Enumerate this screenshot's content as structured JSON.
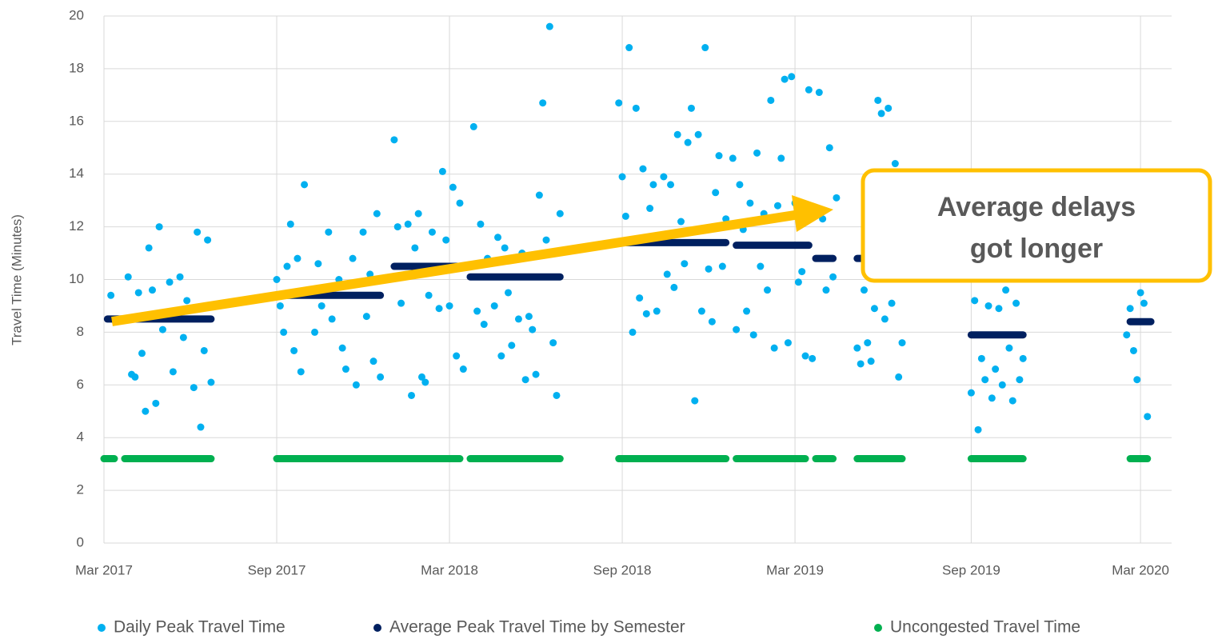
{
  "chart_data": {
    "type": "scatter",
    "y_label": "Travel Time (Minutes)",
    "annotation": [
      "Average delays",
      "got longer"
    ],
    "annotation_color": "#ffc000",
    "xlim": [
      2017.16,
      2020.25
    ],
    "xticks": [
      {
        "value": 2017.16,
        "label": "Mar 2017"
      },
      {
        "value": 2017.66,
        "label": "Sep 2017"
      },
      {
        "value": 2018.16,
        "label": "Mar 2018"
      },
      {
        "value": 2018.66,
        "label": "Sep 2018"
      },
      {
        "value": 2019.16,
        "label": "Mar 2019"
      },
      {
        "value": 2019.67,
        "label": "Sep 2019"
      },
      {
        "value": 2020.16,
        "label": "Mar 2020"
      }
    ],
    "ylim": [
      0,
      20
    ],
    "yticks": [
      0,
      2,
      4,
      6,
      8,
      10,
      12,
      14,
      16,
      18,
      20
    ],
    "grid": true,
    "legend": "bottom",
    "series": [
      {
        "name": "Daily Peak Travel Time",
        "color": "#00b0f0",
        "kind": "points",
        "x": [
          2017.18,
          2017.2,
          2017.23,
          2017.24,
          2017.25,
          2017.26,
          2017.27,
          2017.28,
          2017.29,
          2017.3,
          2017.31,
          2017.32,
          2017.33,
          2017.35,
          2017.36,
          2017.38,
          2017.39,
          2017.4,
          2017.42,
          2017.43,
          2017.44,
          2017.45,
          2017.46,
          2017.47,
          2017.66,
          2017.67,
          2017.68,
          2017.69,
          2017.7,
          2017.71,
          2017.72,
          2017.73,
          2017.74,
          2017.75,
          2017.77,
          2017.78,
          2017.79,
          2017.81,
          2017.82,
          2017.84,
          2017.85,
          2017.86,
          2017.88,
          2017.89,
          2017.91,
          2017.92,
          2017.93,
          2017.94,
          2017.95,
          2017.96,
          2018.0,
          2018.01,
          2018.02,
          2018.04,
          2018.05,
          2018.06,
          2018.07,
          2018.08,
          2018.09,
          2018.1,
          2018.11,
          2018.13,
          2018.14,
          2018.15,
          2018.16,
          2018.17,
          2018.18,
          2018.19,
          2018.2,
          2018.23,
          2018.24,
          2018.25,
          2018.26,
          2018.27,
          2018.29,
          2018.3,
          2018.31,
          2018.32,
          2018.33,
          2018.34,
          2018.36,
          2018.37,
          2018.38,
          2018.39,
          2018.4,
          2018.41,
          2018.42,
          2018.43,
          2018.44,
          2018.45,
          2018.46,
          2018.47,
          2018.48,
          2018.65,
          2018.66,
          2018.67,
          2018.68,
          2018.69,
          2018.7,
          2018.71,
          2018.72,
          2018.73,
          2018.74,
          2018.75,
          2018.76,
          2018.78,
          2018.79,
          2018.8,
          2018.81,
          2018.82,
          2018.83,
          2018.84,
          2018.85,
          2018.86,
          2018.87,
          2018.88,
          2018.89,
          2018.9,
          2018.91,
          2018.92,
          2018.93,
          2018.94,
          2018.95,
          2018.96,
          2018.98,
          2018.99,
          2019.0,
          2019.01,
          2019.02,
          2019.03,
          2019.04,
          2019.05,
          2019.06,
          2019.07,
          2019.08,
          2019.09,
          2019.1,
          2019.11,
          2019.12,
          2019.13,
          2019.14,
          2019.15,
          2019.16,
          2019.17,
          2019.18,
          2019.19,
          2019.2,
          2019.21,
          2019.23,
          2019.24,
          2019.25,
          2019.26,
          2019.27,
          2019.28,
          2019.34,
          2019.35,
          2019.36,
          2019.37,
          2019.38,
          2019.39,
          2019.4,
          2019.41,
          2019.42,
          2019.43,
          2019.44,
          2019.45,
          2019.46,
          2019.47,
          2019.67,
          2019.68,
          2019.69,
          2019.7,
          2019.71,
          2019.72,
          2019.73,
          2019.74,
          2019.75,
          2019.76,
          2019.77,
          2019.78,
          2019.79,
          2019.8,
          2019.81,
          2019.82,
          2020.12,
          2020.13,
          2020.14,
          2020.15,
          2020.16,
          2020.17,
          2020.18
        ],
        "values": [
          9.4,
          8.5,
          10.1,
          6.4,
          6.3,
          9.5,
          7.2,
          5.0,
          11.2,
          9.6,
          5.3,
          12.0,
          8.1,
          9.9,
          6.5,
          10.1,
          7.8,
          9.2,
          5.9,
          11.8,
          4.4,
          7.3,
          11.5,
          6.1,
          10.0,
          9.0,
          8.0,
          10.5,
          12.1,
          7.3,
          10.8,
          6.5,
          13.6,
          9.6,
          8.0,
          10.6,
          9.0,
          11.8,
          8.5,
          10.0,
          7.4,
          6.6,
          10.8,
          6.0,
          11.8,
          8.6,
          10.2,
          6.9,
          12.5,
          6.3,
          15.3,
          12.0,
          9.1,
          12.1,
          5.6,
          11.2,
          12.5,
          6.3,
          6.1,
          9.4,
          11.8,
          8.9,
          14.1,
          11.5,
          9.0,
          13.5,
          7.1,
          12.9,
          6.6,
          15.8,
          8.8,
          12.1,
          8.3,
          10.8,
          9.0,
          11.6,
          7.1,
          11.2,
          9.5,
          7.5,
          8.5,
          11.0,
          6.2,
          8.6,
          8.1,
          6.4,
          13.2,
          16.7,
          11.5,
          19.6,
          7.6,
          5.6,
          12.5,
          16.7,
          13.9,
          12.4,
          18.8,
          8.0,
          16.5,
          9.3,
          14.2,
          8.7,
          12.7,
          13.6,
          8.8,
          13.9,
          10.2,
          13.6,
          9.7,
          15.5,
          12.2,
          10.6,
          15.2,
          16.5,
          5.4,
          15.5,
          8.8,
          18.8,
          10.4,
          8.4,
          13.3,
          14.7,
          10.5,
          12.3,
          14.6,
          8.1,
          13.6,
          11.9,
          8.8,
          12.9,
          7.9,
          14.8,
          10.5,
          12.5,
          9.6,
          16.8,
          7.4,
          12.8,
          14.6,
          17.6,
          7.6,
          17.7,
          12.9,
          9.9,
          10.3,
          7.1,
          17.2,
          7.0,
          17.1,
          12.3,
          9.6,
          15.0,
          10.1,
          13.1,
          7.4,
          6.8,
          9.6,
          7.6,
          6.9,
          8.9,
          16.8,
          16.3,
          8.5,
          16.5,
          9.1,
          14.4,
          6.3,
          7.6,
          5.7,
          9.2,
          4.3,
          7.0,
          6.2,
          9.0,
          5.5,
          6.6,
          8.9,
          6.0,
          9.6,
          7.4,
          5.4,
          9.1,
          6.2,
          7.0,
          7.9,
          8.9,
          7.3,
          6.2,
          9.5,
          9.1,
          4.8
        ]
      },
      {
        "name": "Average Peak Travel Time by Semester",
        "color": "#002060",
        "kind": "segments",
        "x_start": [
          2017.17,
          2017.66,
          2018.0,
          2018.22,
          2018.65,
          2018.99,
          2019.22,
          2019.34,
          2019.67,
          2020.13
        ],
        "x_end": [
          2017.47,
          2017.96,
          2018.2,
          2018.48,
          2018.96,
          2019.2,
          2019.27,
          2019.47,
          2019.82,
          2020.19
        ],
        "values": [
          8.5,
          9.4,
          10.5,
          10.1,
          11.4,
          11.3,
          10.8,
          10.8,
          7.9,
          8.4
        ]
      },
      {
        "name": "Uncongested Travel Time",
        "color": "#00b050",
        "kind": "segments",
        "x_start": [
          2017.16,
          2017.22,
          2017.66,
          2018.22,
          2018.65,
          2018.99,
          2019.22,
          2019.34,
          2019.67,
          2020.13
        ],
        "x_end": [
          2017.19,
          2017.47,
          2018.19,
          2018.48,
          2018.96,
          2019.19,
          2019.27,
          2019.47,
          2019.82,
          2020.18
        ],
        "values": [
          3.2,
          3.2,
          3.2,
          3.2,
          3.2,
          3.2,
          3.2,
          3.2,
          3.2,
          3.2
        ]
      }
    ]
  }
}
